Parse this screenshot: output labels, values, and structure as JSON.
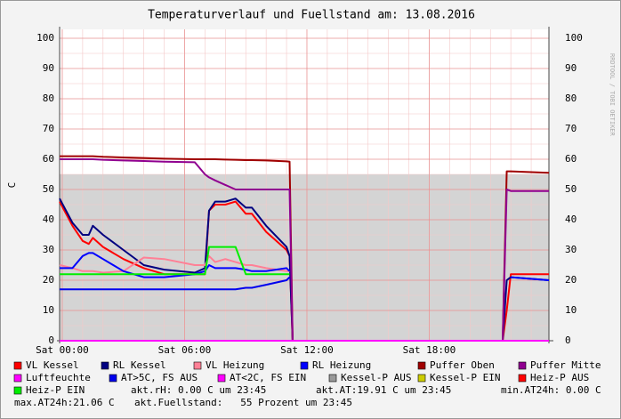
{
  "chart_data": {
    "type": "line",
    "title": "Temperaturverlauf und Fuellstand am: 13.08.2016",
    "y_label": "C",
    "watermark": "RRDTOOL / TOBI OETIKER",
    "x": [
      -0.13,
      0.5,
      1.0,
      1.3,
      1.5,
      2.0,
      3.0,
      4.0,
      5.0,
      6.5,
      7.0,
      7.2,
      7.5,
      8.0,
      8.5,
      9.0,
      9.3,
      10.0,
      11.0,
      11.15,
      11.3,
      15.0,
      21.0,
      21.6,
      21.8,
      22.0,
      23.87
    ],
    "xlim": [
      -0.13,
      23.87
    ],
    "xticks": [
      {
        "value": 0,
        "label": "Sat 00:00"
      },
      {
        "value": 6,
        "label": "Sat 06:00"
      },
      {
        "value": 12,
        "label": "Sat 12:00"
      },
      {
        "value": 18,
        "label": "Sat 18:00"
      }
    ],
    "ylim": [
      0,
      100
    ],
    "yticks": [
      0,
      10,
      20,
      30,
      40,
      50,
      60,
      70,
      80,
      90,
      100
    ],
    "grid": true,
    "series": [
      {
        "name": "VL Kessel",
        "color": "#ff0000",
        "values": [
          46,
          38,
          33,
          32,
          34,
          31,
          27,
          24,
          22,
          22,
          22,
          43,
          45,
          45,
          46,
          42,
          42,
          36,
          30,
          28,
          0,
          0,
          0,
          0,
          10,
          22,
          22
        ]
      },
      {
        "name": "RL Kessel",
        "color": "#000080",
        "values": [
          47,
          39,
          35,
          35,
          38,
          35,
          30,
          25,
          23.5,
          22.5,
          24,
          43,
          46,
          46,
          47,
          44,
          44,
          38,
          31,
          28,
          0,
          0,
          0,
          0,
          20,
          21,
          20
        ]
      },
      {
        "name": "VL Heizung",
        "color": "#ff8096",
        "values": [
          25,
          24,
          23,
          23,
          23,
          22.5,
          23,
          27.5,
          27,
          25,
          25,
          28,
          26,
          27,
          26,
          25,
          25,
          24,
          23,
          23,
          null,
          null,
          null,
          null,
          null,
          null,
          null
        ]
      },
      {
        "name": "RL Heizung",
        "color": "#0000ff",
        "values": [
          24,
          24,
          28,
          29,
          29,
          27,
          23,
          21,
          21,
          22,
          23,
          25,
          24,
          24,
          24,
          23.5,
          23,
          23,
          24,
          23,
          null,
          null,
          null,
          null,
          null,
          21,
          20
        ]
      },
      {
        "name": "Puffer Oben",
        "color": "#a00000",
        "values": [
          61,
          61,
          61,
          61,
          61,
          60.8,
          60.6,
          60.4,
          60.2,
          60,
          60,
          60,
          60,
          59.9,
          59.8,
          59.7,
          59.7,
          59.6,
          59.3,
          59.2,
          0,
          0,
          0,
          0,
          56,
          56,
          55.5
        ]
      },
      {
        "name": "Puffer Mitte",
        "color": "#900090",
        "values": [
          60,
          60,
          60,
          60,
          60,
          59.8,
          59.6,
          59.4,
          59.2,
          59,
          55,
          54,
          53,
          51.5,
          50,
          50,
          50,
          50,
          50,
          50,
          0,
          0,
          0,
          0,
          50,
          49.5,
          49.5
        ]
      },
      {
        "name": "Luftfeuchte",
        "color": "#ff00ff",
        "values": [
          0,
          0,
          0,
          0,
          0,
          0,
          0,
          0,
          0,
          0,
          0,
          0,
          0,
          0,
          0,
          0,
          0,
          0,
          0,
          0,
          0,
          0,
          0,
          0,
          0,
          0,
          0
        ]
      },
      {
        "name": "AT>5C, FS AUS",
        "color": "#0000ee",
        "values": [
          17,
          17,
          17,
          17,
          17,
          17,
          17,
          17,
          17,
          17,
          17,
          17,
          17,
          17,
          17,
          17.5,
          17.5,
          18.5,
          20,
          21,
          null,
          null,
          null,
          null,
          null,
          null,
          null
        ]
      },
      {
        "name": "AT<2C, FS EIN",
        "color": "#ff00ff"
      },
      {
        "name": "Kessel-P AUS",
        "color": "#999999",
        "area": true,
        "values": [
          55,
          55,
          55,
          55,
          55,
          55,
          55,
          55,
          55,
          55,
          55,
          55,
          55,
          55,
          55,
          55,
          55,
          55,
          55,
          55,
          55,
          55,
          55,
          55,
          55,
          55,
          55
        ]
      },
      {
        "name": "Kessel-P EIN",
        "color": "#cccc00"
      },
      {
        "name": "Heiz-P AUS",
        "color": "#ff0000"
      },
      {
        "name": "Heiz-P EIN",
        "color": "#00ee00",
        "values": [
          22,
          22,
          22,
          22,
          22,
          22,
          22,
          22,
          22,
          22,
          22,
          31,
          31,
          31,
          31,
          22,
          22,
          22,
          22,
          22,
          null,
          null,
          null,
          null,
          null,
          null,
          null
        ]
      }
    ],
    "stats": [
      "akt.rH: 0.00 C um 23:45",
      "akt.AT:19.91 C um 23:45",
      "min.AT24h: 0.00 C",
      "max.AT24h:21.06 C",
      "akt.Fuellstand:   55 Prozent um 23:45"
    ]
  }
}
